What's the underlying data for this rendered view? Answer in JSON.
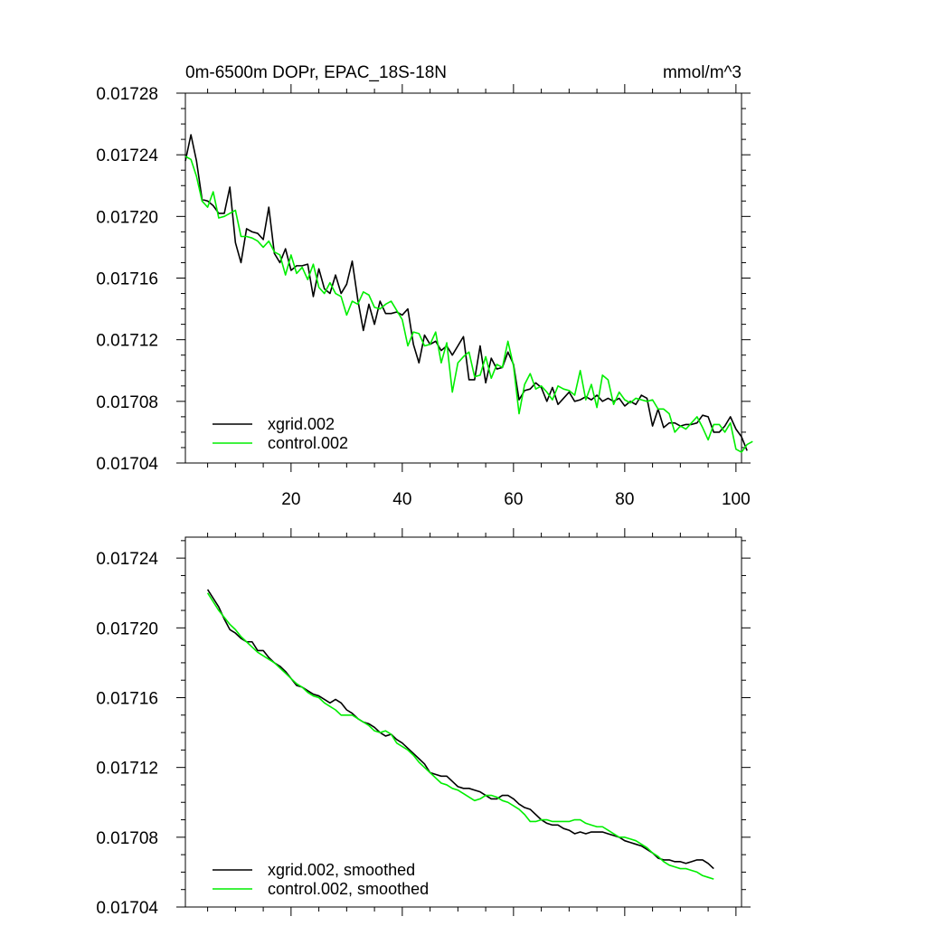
{
  "chart_data": [
    {
      "type": "line",
      "title": "0m-6500m DOPr, EPAC_18S-18N",
      "units": "mmol/m^3",
      "xlim": [
        1,
        101
      ],
      "ylim": [
        0.01704,
        0.01728
      ],
      "x_ticks": [
        20,
        40,
        60,
        80,
        100
      ],
      "y_ticks": [
        "0.01704",
        "0.01708",
        "0.01712",
        "0.01716",
        "0.01720",
        "0.01724",
        "0.01728"
      ],
      "y_tick_values": [
        0.01704,
        0.01708,
        0.01712,
        0.01716,
        0.0172,
        0.01724,
        0.01728
      ],
      "legend_position": "bottom-left",
      "series": [
        {
          "name": "xgrid.002",
          "color": "#000000",
          "x_start": 1,
          "values": [
            0.017236,
            0.017253,
            0.017236,
            0.017211,
            0.01721,
            0.017207,
            0.017202,
            0.017202,
            0.017219,
            0.017183,
            0.01717,
            0.017192,
            0.01719,
            0.017189,
            0.017185,
            0.017206,
            0.017176,
            0.01717,
            0.017179,
            0.017165,
            0.017168,
            0.017168,
            0.017169,
            0.017148,
            0.017166,
            0.017153,
            0.01715,
            0.017162,
            0.01715,
            0.017156,
            0.017171,
            0.017146,
            0.017126,
            0.017143,
            0.01713,
            0.017145,
            0.017137,
            0.017137,
            0.017138,
            0.017136,
            0.01714,
            0.017117,
            0.017105,
            0.017123,
            0.017117,
            0.017119,
            0.017113,
            0.017116,
            0.01711,
            0.017116,
            0.017122,
            0.017094,
            0.017094,
            0.017116,
            0.017092,
            0.017108,
            0.017101,
            0.017102,
            0.017112,
            0.017104,
            0.017081,
            0.017087,
            0.017088,
            0.017092,
            0.017089,
            0.01708,
            0.017089,
            0.017078,
            0.017082,
            0.017086,
            0.01708,
            0.017081,
            0.017083,
            0.017081,
            0.017084,
            0.01708,
            0.017082,
            0.01708,
            0.017082,
            0.017077,
            0.01708,
            0.017078,
            0.017084,
            0.017082,
            0.017064,
            0.017075,
            0.017063,
            0.017066,
            0.017066,
            0.017064,
            0.017065,
            0.017065,
            0.017066,
            0.017071,
            0.01707,
            0.01706,
            0.01706,
            0.017064,
            0.01707,
            0.017062,
            0.017057,
            0.017048
          ]
        },
        {
          "name": "control.002",
          "color": "#00ee00",
          "x_start": 1,
          "values": [
            0.017239,
            0.017237,
            0.017226,
            0.01721,
            0.017206,
            0.017216,
            0.017199,
            0.0172,
            0.017202,
            0.017204,
            0.017187,
            0.017187,
            0.017186,
            0.017184,
            0.01718,
            0.017184,
            0.017177,
            0.017175,
            0.017162,
            0.017175,
            0.017163,
            0.017167,
            0.017159,
            0.017169,
            0.017154,
            0.01715,
            0.017157,
            0.01715,
            0.017148,
            0.017136,
            0.017145,
            0.017143,
            0.017151,
            0.017149,
            0.017141,
            0.01714,
            0.017143,
            0.017145,
            0.017139,
            0.017133,
            0.017116,
            0.017125,
            0.017124,
            0.017116,
            0.017117,
            0.017125,
            0.017105,
            0.017118,
            0.017086,
            0.017105,
            0.017109,
            0.017112,
            0.017096,
            0.017097,
            0.017109,
            0.017095,
            0.017104,
            0.017102,
            0.017119,
            0.017103,
            0.017072,
            0.017091,
            0.017098,
            0.017088,
            0.01709,
            0.017086,
            0.017081,
            0.01709,
            0.017088,
            0.017087,
            0.017084,
            0.0171,
            0.017081,
            0.017091,
            0.017076,
            0.017097,
            0.017094,
            0.017078,
            0.017086,
            0.017081,
            0.017079,
            0.017082,
            0.017081,
            0.01708,
            0.017081,
            0.017075,
            0.017075,
            0.017072,
            0.01706,
            0.017064,
            0.017062,
            0.017066,
            0.01707,
            0.017063,
            0.017055,
            0.017065,
            0.017065,
            0.01706,
            0.017066,
            0.017049,
            0.017047,
            0.017052,
            0.017054
          ]
        }
      ]
    },
    {
      "type": "line",
      "title": "",
      "xlim": [
        1,
        101
      ],
      "ylim": [
        0.01704,
        0.017252
      ],
      "x_ticks": [
        20,
        40,
        60,
        80,
        100
      ],
      "y_ticks": [
        "0.01704",
        "0.01708",
        "0.01712",
        "0.01716",
        "0.01720",
        "0.01724"
      ],
      "y_tick_values": [
        0.01704,
        0.01708,
        0.01712,
        0.01716,
        0.0172,
        0.01724
      ],
      "legend_position": "bottom-left",
      "series": [
        {
          "name": "xgrid.002, smoothed",
          "color": "#000000",
          "x_start": 5,
          "values": [
            0.017222,
            0.017217,
            0.017212,
            0.017205,
            0.017199,
            0.017197,
            0.017194,
            0.017192,
            0.017192,
            0.017187,
            0.017187,
            0.017183,
            0.01718,
            0.017178,
            0.017175,
            0.017171,
            0.017167,
            0.017166,
            0.017164,
            0.017162,
            0.017161,
            0.017159,
            0.017157,
            0.017159,
            0.017157,
            0.017153,
            0.017151,
            0.017148,
            0.017146,
            0.017145,
            0.017143,
            0.01714,
            0.017138,
            0.017139,
            0.017136,
            0.017134,
            0.017131,
            0.017128,
            0.017125,
            0.017122,
            0.017117,
            0.017116,
            0.017115,
            0.017115,
            0.017112,
            0.017109,
            0.017108,
            0.017108,
            0.017107,
            0.017106,
            0.017104,
            0.017102,
            0.017102,
            0.017104,
            0.017104,
            0.017102,
            0.017099,
            0.017097,
            0.017096,
            0.017093,
            0.01709,
            0.017088,
            0.017087,
            0.017087,
            0.017085,
            0.017084,
            0.017082,
            0.017083,
            0.017082,
            0.017083,
            0.017083,
            0.017083,
            0.017082,
            0.017081,
            0.01708,
            0.017078,
            0.017077,
            0.017076,
            0.017075,
            0.017073,
            0.017071,
            0.017068,
            0.017067,
            0.017067,
            0.017066,
            0.017066,
            0.017065,
            0.017066,
            0.017067,
            0.017067,
            0.017065,
            0.017062
          ]
        },
        {
          "name": "control.002, smoothed",
          "color": "#00ee00",
          "x_start": 5,
          "values": [
            0.01722,
            0.017215,
            0.01721,
            0.017206,
            0.017202,
            0.017199,
            0.017195,
            0.017192,
            0.017189,
            0.017186,
            0.017184,
            0.017182,
            0.01718,
            0.017177,
            0.017174,
            0.017171,
            0.017168,
            0.017166,
            0.017163,
            0.017161,
            0.01716,
            0.017157,
            0.017155,
            0.017153,
            0.01715,
            0.01715,
            0.01715,
            0.017148,
            0.017146,
            0.017144,
            0.017141,
            0.01714,
            0.017141,
            0.017139,
            0.017134,
            0.017132,
            0.01713,
            0.017127,
            0.017123,
            0.01712,
            0.017117,
            0.017114,
            0.017111,
            0.01711,
            0.017108,
            0.017107,
            0.017105,
            0.017103,
            0.017101,
            0.017102,
            0.017104,
            0.017104,
            0.017103,
            0.017101,
            0.0171,
            0.017098,
            0.017096,
            0.017093,
            0.017089,
            0.017089,
            0.01709,
            0.01709,
            0.017089,
            0.017089,
            0.017089,
            0.017089,
            0.01709,
            0.01709,
            0.017088,
            0.017087,
            0.017086,
            0.017086,
            0.017084,
            0.017082,
            0.01708,
            0.01708,
            0.017079,
            0.017078,
            0.017076,
            0.017074,
            0.017071,
            0.017069,
            0.017066,
            0.017064,
            0.017063,
            0.017062,
            0.017062,
            0.017061,
            0.01706,
            0.017058,
            0.017057,
            0.017056
          ]
        }
      ]
    }
  ]
}
